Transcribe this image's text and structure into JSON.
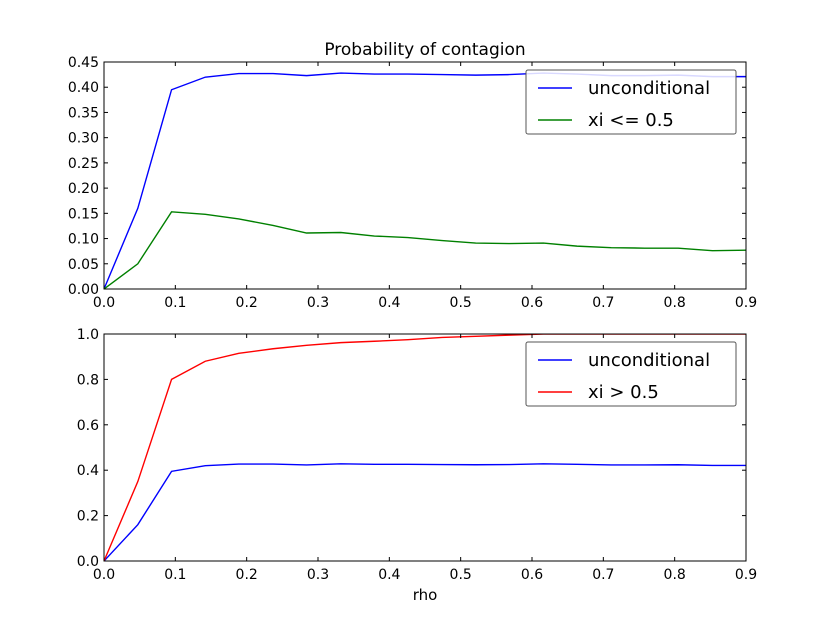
{
  "chart_data": [
    {
      "type": "line",
      "title": "Probability of contagion",
      "xlabel": "",
      "ylabel": "",
      "xlim": [
        0,
        0.9
      ],
      "ylim": [
        0,
        0.45
      ],
      "xticks": [
        0.0,
        0.1,
        0.2,
        0.3,
        0.4,
        0.5,
        0.6,
        0.7,
        0.8,
        0.9
      ],
      "xtick_labels": [
        "0.0",
        "0.1",
        "0.2",
        "0.3",
        "0.4",
        "0.5",
        "0.6",
        "0.7",
        "0.8",
        "0.9"
      ],
      "yticks": [
        0.0,
        0.05,
        0.1,
        0.15,
        0.2,
        0.25,
        0.3,
        0.35,
        0.4,
        0.45
      ],
      "ytick_labels": [
        "0.00",
        "0.05",
        "0.10",
        "0.15",
        "0.20",
        "0.25",
        "0.30",
        "0.35",
        "0.40",
        "0.45"
      ],
      "grid": false,
      "legend_position": "top-right",
      "x": [
        0.0,
        0.0474,
        0.0947,
        0.142,
        0.189,
        0.237,
        0.284,
        0.332,
        0.379,
        0.426,
        0.474,
        0.521,
        0.568,
        0.616,
        0.663,
        0.711,
        0.758,
        0.805,
        0.853,
        0.9
      ],
      "series": [
        {
          "name": "unconditional",
          "color": "#0000ff",
          "values": [
            0.0,
            0.16,
            0.395,
            0.42,
            0.427,
            0.427,
            0.423,
            0.428,
            0.426,
            0.426,
            0.425,
            0.424,
            0.425,
            0.428,
            0.426,
            0.423,
            0.423,
            0.424,
            0.421,
            0.421
          ]
        },
        {
          "name": "xi <= 0.5",
          "color": "#008000",
          "values": [
            0.0,
            0.05,
            0.153,
            0.148,
            0.139,
            0.126,
            0.111,
            0.112,
            0.105,
            0.102,
            0.096,
            0.091,
            0.09,
            0.091,
            0.085,
            0.082,
            0.081,
            0.081,
            0.076,
            0.077
          ]
        }
      ]
    },
    {
      "type": "line",
      "title": "",
      "xlabel": "rho",
      "ylabel": "",
      "xlim": [
        0,
        0.9
      ],
      "ylim": [
        0,
        1.0
      ],
      "xticks": [
        0.0,
        0.1,
        0.2,
        0.3,
        0.4,
        0.5,
        0.6,
        0.7,
        0.8,
        0.9
      ],
      "xtick_labels": [
        "0.0",
        "0.1",
        "0.2",
        "0.3",
        "0.4",
        "0.5",
        "0.6",
        "0.7",
        "0.8",
        "0.9"
      ],
      "yticks": [
        0.0,
        0.2,
        0.4,
        0.6,
        0.8,
        1.0
      ],
      "ytick_labels": [
        "0.0",
        "0.2",
        "0.4",
        "0.6",
        "0.8",
        "1.0"
      ],
      "grid": false,
      "legend_position": "top-right",
      "x": [
        0.0,
        0.0474,
        0.0947,
        0.142,
        0.189,
        0.237,
        0.284,
        0.332,
        0.379,
        0.426,
        0.474,
        0.521,
        0.568,
        0.616,
        0.663,
        0.711,
        0.758,
        0.805,
        0.853,
        0.9
      ],
      "series": [
        {
          "name": "unconditional",
          "color": "#0000ff",
          "values": [
            0.0,
            0.16,
            0.395,
            0.42,
            0.427,
            0.427,
            0.423,
            0.428,
            0.426,
            0.426,
            0.425,
            0.424,
            0.425,
            0.428,
            0.426,
            0.423,
            0.423,
            0.424,
            0.421,
            0.421
          ]
        },
        {
          "name": "xi > 0.5",
          "color": "#ff0000",
          "values": [
            0.0,
            0.35,
            0.8,
            0.88,
            0.915,
            0.935,
            0.95,
            0.962,
            0.968,
            0.975,
            0.985,
            0.99,
            0.995,
            1.0,
            1.0,
            1.0,
            1.0,
            1.0,
            1.0,
            1.0
          ]
        }
      ]
    }
  ]
}
